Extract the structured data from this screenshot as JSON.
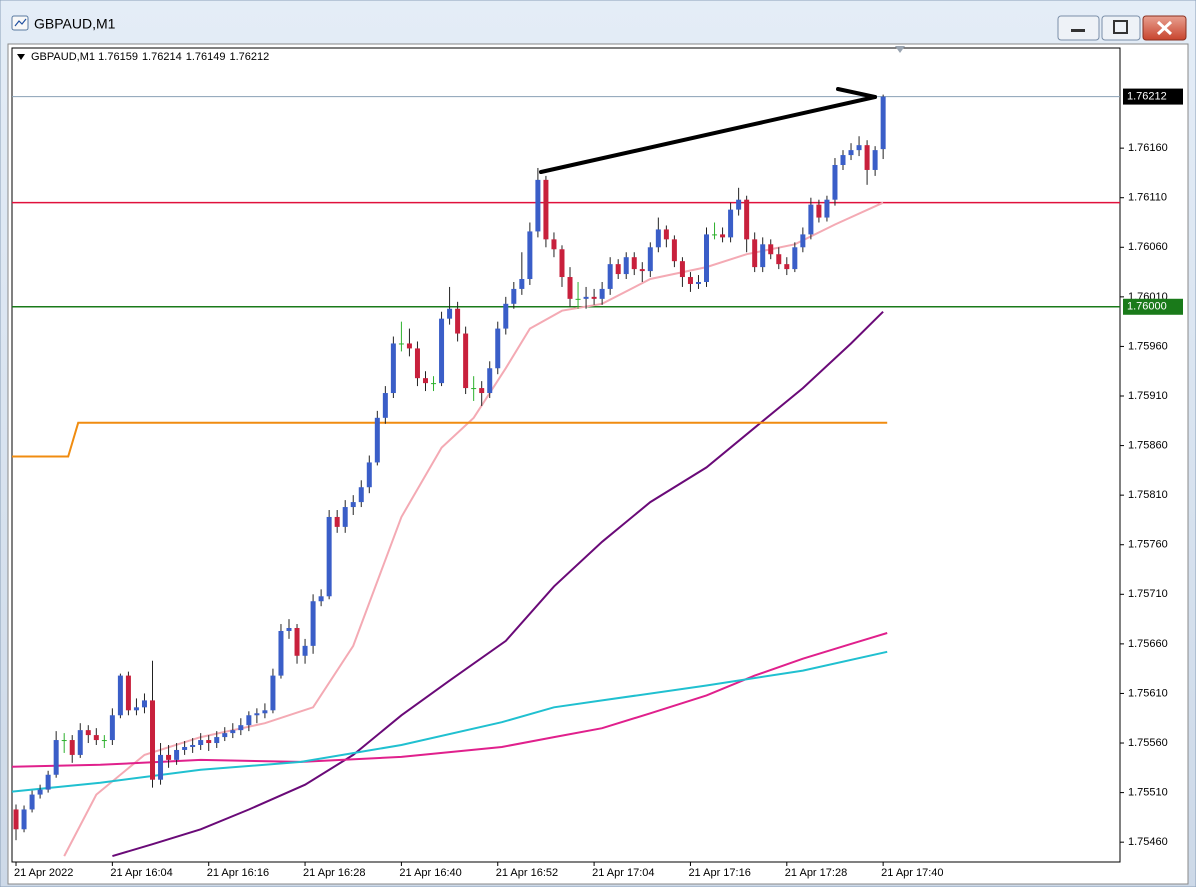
{
  "window": {
    "title": "GBPAUD,M1"
  },
  "chart_data": {
    "type": "candlestick",
    "title": "GBPAUD,M1",
    "bull_color": "#3a5ec8",
    "bear_color": "#c8203c",
    "doji_color": "#2cb02c",
    "ohlc": [
      [
        1.75493,
        1.75498,
        1.75462,
        1.75473
      ],
      [
        1.75473,
        1.75497,
        1.7547,
        1.75493
      ],
      [
        1.75493,
        1.75512,
        1.7549,
        1.75508
      ],
      [
        1.75508,
        1.75518,
        1.75504,
        1.75513
      ],
      [
        1.75513,
        1.75532,
        1.7551,
        1.75528
      ],
      [
        1.75528,
        1.75572,
        1.75525,
        1.75563
      ],
      [
        1.75563,
        1.7557,
        1.7555,
        1.75563
      ],
      [
        1.75563,
        1.75568,
        1.7554,
        1.75548
      ],
      [
        1.75548,
        1.7558,
        1.75545,
        1.75573
      ],
      [
        1.75573,
        1.75578,
        1.7556,
        1.75568
      ],
      [
        1.75568,
        1.75575,
        1.75558,
        1.75563
      ],
      [
        1.75563,
        1.75568,
        1.75555,
        1.75563
      ],
      [
        1.75563,
        1.75595,
        1.75558,
        1.75588
      ],
      [
        1.75588,
        1.7563,
        1.75585,
        1.75628
      ],
      [
        1.75628,
        1.75632,
        1.75588,
        1.75593
      ],
      [
        1.75593,
        1.75605,
        1.75588,
        1.75596
      ],
      [
        1.75596,
        1.7561,
        1.7559,
        1.75603
      ],
      [
        1.75603,
        1.75643,
        1.75515,
        1.75523
      ],
      [
        1.75523,
        1.7556,
        1.75518,
        1.75548
      ],
      [
        1.75548,
        1.75558,
        1.75535,
        1.75543
      ],
      [
        1.75543,
        1.7556,
        1.75538,
        1.75553
      ],
      [
        1.75553,
        1.75562,
        1.75548,
        1.75556
      ],
      [
        1.75556,
        1.75565,
        1.7555,
        1.75558
      ],
      [
        1.75558,
        1.7557,
        1.75553,
        1.75563
      ],
      [
        1.75563,
        1.75568,
        1.75552,
        1.7556
      ],
      [
        1.7556,
        1.75572,
        1.75555,
        1.75566
      ],
      [
        1.75566,
        1.75576,
        1.75562,
        1.7557
      ],
      [
        1.7557,
        1.7558,
        1.75565,
        1.75573
      ],
      [
        1.75573,
        1.75585,
        1.75568,
        1.75578
      ],
      [
        1.75578,
        1.75592,
        1.75572,
        1.75588
      ],
      [
        1.75588,
        1.75595,
        1.7558,
        1.7559
      ],
      [
        1.7559,
        1.756,
        1.75585,
        1.75593
      ],
      [
        1.75593,
        1.75635,
        1.7559,
        1.75628
      ],
      [
        1.75628,
        1.7568,
        1.75625,
        1.75673
      ],
      [
        1.75673,
        1.75685,
        1.75665,
        1.75676
      ],
      [
        1.75676,
        1.7568,
        1.7564,
        1.75648
      ],
      [
        1.75648,
        1.75665,
        1.7564,
        1.75658
      ],
      [
        1.75658,
        1.7571,
        1.7565,
        1.75703
      ],
      [
        1.75703,
        1.75715,
        1.75698,
        1.75708
      ],
      [
        1.75708,
        1.75795,
        1.75705,
        1.75788
      ],
      [
        1.75788,
        1.75795,
        1.75772,
        1.75778
      ],
      [
        1.75778,
        1.75805,
        1.75772,
        1.75798
      ],
      [
        1.75798,
        1.7581,
        1.7579,
        1.75803
      ],
      [
        1.75803,
        1.75825,
        1.75798,
        1.75818
      ],
      [
        1.75818,
        1.7585,
        1.75812,
        1.75843
      ],
      [
        1.75843,
        1.75895,
        1.7584,
        1.75888
      ],
      [
        1.75888,
        1.7592,
        1.75882,
        1.75913
      ],
      [
        1.75913,
        1.7597,
        1.75908,
        1.75963
      ],
      [
        1.75963,
        1.75985,
        1.75955,
        1.75963
      ],
      [
        1.75963,
        1.75978,
        1.7595,
        1.75958
      ],
      [
        1.75958,
        1.75965,
        1.7592,
        1.75928
      ],
      [
        1.75928,
        1.75935,
        1.75915,
        1.75923
      ],
      [
        1.75923,
        1.7593,
        1.75915,
        1.75923
      ],
      [
        1.75923,
        1.75995,
        1.7592,
        1.75988
      ],
      [
        1.75988,
        1.7602,
        1.75982,
        1.75998
      ],
      [
        1.75998,
        1.76005,
        1.75965,
        1.75973
      ],
      [
        1.75973,
        1.7598,
        1.75912,
        1.75918
      ],
      [
        1.75918,
        1.7593,
        1.75905,
        1.75918
      ],
      [
        1.75918,
        1.75925,
        1.759,
        1.75913
      ],
      [
        1.75913,
        1.75945,
        1.75908,
        1.75938
      ],
      [
        1.75938,
        1.75985,
        1.75932,
        1.75978
      ],
      [
        1.75978,
        1.7601,
        1.75972,
        1.76003
      ],
      [
        1.76003,
        1.76025,
        1.75998,
        1.76018
      ],
      [
        1.76018,
        1.76055,
        1.76012,
        1.76028
      ],
      [
        1.76028,
        1.76085,
        1.76022,
        1.76076
      ],
      [
        1.76076,
        1.7614,
        1.7607,
        1.76128
      ],
      [
        1.76128,
        1.76132,
        1.7606,
        1.76068
      ],
      [
        1.76068,
        1.76075,
        1.7605,
        1.76058
      ],
      [
        1.76058,
        1.76062,
        1.7602,
        1.7603
      ],
      [
        1.7603,
        1.7604,
        1.76,
        1.76008
      ],
      [
        1.76008,
        1.76025,
        1.75998,
        1.76008
      ],
      [
        1.76008,
        1.7602,
        1.75998,
        1.7601
      ],
      [
        1.7601,
        1.76018,
        1.76002,
        1.76008
      ],
      [
        1.76008,
        1.76025,
        1.76002,
        1.76018
      ],
      [
        1.76018,
        1.7605,
        1.76012,
        1.76043
      ],
      [
        1.76043,
        1.76048,
        1.76028,
        1.76033
      ],
      [
        1.76033,
        1.76055,
        1.76028,
        1.7605
      ],
      [
        1.7605,
        1.76055,
        1.76032,
        1.76038
      ],
      [
        1.76038,
        1.76045,
        1.76025,
        1.76036
      ],
      [
        1.76036,
        1.76065,
        1.7603,
        1.7606
      ],
      [
        1.7606,
        1.7609,
        1.76055,
        1.76078
      ],
      [
        1.76078,
        1.76082,
        1.7606,
        1.76068
      ],
      [
        1.76068,
        1.76072,
        1.7604,
        1.76046
      ],
      [
        1.76046,
        1.7605,
        1.7602,
        1.7603
      ],
      [
        1.7603,
        1.76035,
        1.76015,
        1.76023
      ],
      [
        1.76023,
        1.76032,
        1.76018,
        1.76025
      ],
      [
        1.76025,
        1.7608,
        1.7602,
        1.76073
      ],
      [
        1.76073,
        1.76085,
        1.76068,
        1.76073
      ],
      [
        1.76073,
        1.7608,
        1.76065,
        1.7607
      ],
      [
        1.7607,
        1.76105,
        1.76065,
        1.76098
      ],
      [
        1.76098,
        1.7612,
        1.76092,
        1.76108
      ],
      [
        1.76108,
        1.76112,
        1.76055,
        1.76068
      ],
      [
        1.76068,
        1.76075,
        1.76035,
        1.7604
      ],
      [
        1.7604,
        1.7607,
        1.76035,
        1.76063
      ],
      [
        1.76063,
        1.76068,
        1.76048,
        1.76053
      ],
      [
        1.76053,
        1.7606,
        1.76038,
        1.76043
      ],
      [
        1.76043,
        1.7605,
        1.76032,
        1.76038
      ],
      [
        1.76038,
        1.76065,
        1.76035,
        1.7606
      ],
      [
        1.7606,
        1.7608,
        1.76055,
        1.76073
      ],
      [
        1.76073,
        1.7611,
        1.76068,
        1.76103
      ],
      [
        1.76103,
        1.76108,
        1.76085,
        1.7609
      ],
      [
        1.7609,
        1.76112,
        1.76086,
        1.76108
      ],
      [
        1.76108,
        1.7615,
        1.76102,
        1.76143
      ],
      [
        1.76143,
        1.76158,
        1.76138,
        1.76153
      ],
      [
        1.76153,
        1.76165,
        1.76148,
        1.76158
      ],
      [
        1.76158,
        1.76172,
        1.76152,
        1.76163
      ],
      [
        1.76163,
        1.76168,
        1.76123,
        1.76138
      ],
      [
        1.76138,
        1.76162,
        1.76132,
        1.76158
      ],
      [
        1.76159,
        1.76214,
        1.76149,
        1.76212
      ]
    ],
    "xlim": [
      -0.5,
      137.5
    ],
    "xticks": [
      {
        "value": 0,
        "label": "21 Apr 2022"
      },
      {
        "value": 12,
        "label": "21 Apr 16:04"
      },
      {
        "value": 24,
        "label": "21 Apr 16:16"
      },
      {
        "value": 36,
        "label": "21 Apr 16:28"
      },
      {
        "value": 48,
        "label": "21 Apr 16:40"
      },
      {
        "value": 60,
        "label": "21 Apr 16:52"
      },
      {
        "value": 72,
        "label": "21 Apr 17:04"
      },
      {
        "value": 84,
        "label": "21 Apr 17:16"
      },
      {
        "value": 96,
        "label": "21 Apr 17:28"
      },
      {
        "value": 108,
        "label": "21 Apr 17:40"
      }
    ],
    "ylim": [
      1.7544,
      1.76261
    ],
    "yticks": [
      {
        "value": 1.7546,
        "label": "1.75460"
      },
      {
        "value": 1.7551,
        "label": "1.75510"
      },
      {
        "value": 1.7556,
        "label": "1.75560"
      },
      {
        "value": 1.7561,
        "label": "1.75610"
      },
      {
        "value": 1.7566,
        "label": "1.75660"
      },
      {
        "value": 1.7571,
        "label": "1.75710"
      },
      {
        "value": 1.7576,
        "label": "1.75760"
      },
      {
        "value": 1.7581,
        "label": "1.75810"
      },
      {
        "value": 1.7586,
        "label": "1.75860"
      },
      {
        "value": 1.7591,
        "label": "1.75910"
      },
      {
        "value": 1.7596,
        "label": "1.75960"
      },
      {
        "value": 1.7601,
        "label": "1.76010"
      },
      {
        "value": 1.7606,
        "label": "1.76060"
      },
      {
        "value": 1.7611,
        "label": "1.76110"
      },
      {
        "value": 1.7616,
        "label": "1.76160"
      }
    ],
    "levels": [
      {
        "value": 1.76105,
        "color": "#e0103c"
      },
      {
        "value": 1.76,
        "label": "1.76000",
        "color": "#1a7a1a"
      }
    ],
    "series": [
      {
        "color": "#f4aab4",
        "x": [
          6,
          10,
          16,
          23,
          31,
          37,
          42,
          48,
          53,
          57,
          61,
          64,
          68,
          73,
          79,
          86,
          91,
          97,
          102,
          108
        ],
        "values": [
          1.75446,
          1.75508,
          1.75548,
          1.75566,
          1.7558,
          1.75596,
          1.75658,
          1.75788,
          1.75858,
          1.75888,
          1.75938,
          1.75978,
          1.75996,
          1.76003,
          1.76028,
          1.7604,
          1.76053,
          1.76063,
          1.76083,
          1.76105
        ]
      },
      {
        "color": "#6a0a78",
        "x": [
          12,
          17,
          23,
          29,
          36,
          42,
          48,
          54,
          61,
          67,
          73,
          79,
          86,
          92,
          98,
          104,
          108
        ],
        "values": [
          1.75446,
          1.75458,
          1.75473,
          1.75493,
          1.75518,
          1.75548,
          1.75588,
          1.75623,
          1.75663,
          1.75718,
          1.75763,
          1.75803,
          1.75838,
          1.75878,
          1.75918,
          1.75963,
          1.75995
        ]
      },
      {
        "color": "#e0208c",
        "x": [
          -0.5,
          10.5,
          23,
          35.5,
          48,
          60.5,
          67,
          73,
          79,
          86,
          92,
          98,
          104,
          108.5
        ],
        "values": [
          1.75536,
          1.75538,
          1.75543,
          1.75541,
          1.75546,
          1.75556,
          1.75566,
          1.75575,
          1.7559,
          1.75608,
          1.75628,
          1.75645,
          1.7566,
          1.75671
        ]
      },
      {
        "color": "#20c0d0",
        "x": [
          -0.5,
          10.5,
          23,
          35.5,
          48,
          60.5,
          67,
          73,
          86,
          98,
          108.5
        ],
        "values": [
          1.75511,
          1.7552,
          1.75533,
          1.75541,
          1.75558,
          1.75581,
          1.75596,
          1.75603,
          1.75618,
          1.75633,
          1.75652
        ]
      },
      {
        "color": "#f08c10",
        "x": [
          -0.5,
          6.5,
          7.75,
          108.5
        ],
        "values": [
          1.75849,
          1.75849,
          1.75883,
          1.75883
        ]
      }
    ]
  }
}
